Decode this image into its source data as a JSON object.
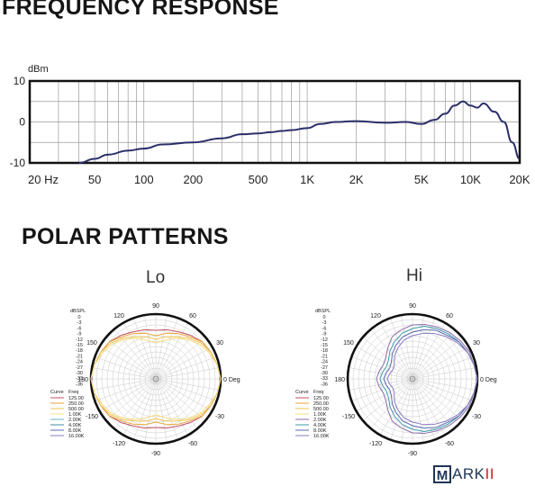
{
  "headings": {
    "frequency_response": "FREQUENCY RESPONSE",
    "polar_patterns": "POLAR PATTERNS"
  },
  "logo": {
    "first": "M",
    "rest": "ARK",
    "accent": "II"
  },
  "chart_data": [
    {
      "type": "line",
      "title": "FREQUENCY RESPONSE",
      "ylabel": "dBm",
      "xscale": "log",
      "xlim": [
        20,
        20000
      ],
      "ylim": [
        -10,
        10
      ],
      "yticks": [
        10,
        0,
        -10
      ],
      "xticks": [
        20,
        50,
        100,
        200,
        500,
        1000,
        2000,
        5000,
        10000,
        20000
      ],
      "xtick_labels": [
        "20 Hz",
        "50",
        "100",
        "200",
        "500",
        "1K",
        "2K",
        "5K",
        "10K",
        "20K"
      ],
      "grid": true,
      "line_color": "#2b2f6a",
      "series": [
        {
          "x": [
            40,
            50,
            60,
            80,
            100,
            130,
            200,
            300,
            400,
            500,
            600,
            700,
            800,
            1000,
            1200,
            1500,
            2000,
            3000,
            4000,
            5000,
            6000,
            7000,
            8000,
            9000,
            10000,
            11000,
            12000,
            14000,
            16000,
            18000,
            20000
          ],
          "y": [
            -10,
            -9,
            -8,
            -7,
            -6.5,
            -5.5,
            -5,
            -4,
            -3,
            -2.8,
            -2.5,
            -2.2,
            -2,
            -1.5,
            -0.5,
            0,
            0.2,
            -0.2,
            0,
            -0.5,
            0.5,
            2,
            4,
            5,
            4,
            3.5,
            4.5,
            2.5,
            0,
            -5,
            -9
          ]
        }
      ]
    },
    {
      "type": "polar",
      "title": "Lo",
      "rlabel": "dBSPL",
      "rticks": [
        "0",
        "-3",
        "-6",
        "-9",
        "-12",
        "-15",
        "-18",
        "-21",
        "-24",
        "-27",
        "-30",
        "-33",
        "-36"
      ],
      "angle_labels": [
        "90",
        "60",
        "30",
        "0 Deg",
        "-30",
        "-60",
        "-90",
        "-120",
        "-150",
        "180",
        "150",
        "120"
      ],
      "legend_header": [
        "Curve",
        "Freq"
      ],
      "series": [
        {
          "name": "125.00",
          "color": "#c05060",
          "r": [
            0,
            -1,
            -2,
            -3,
            -5,
            -7,
            -8,
            -9,
            -8,
            -7,
            -5,
            -3,
            -2,
            -1,
            0,
            -1,
            -2,
            -3,
            -5,
            -7,
            -8,
            -9,
            -8,
            -7,
            -5,
            -3,
            -2,
            -1
          ]
        },
        {
          "name": "250.00",
          "color": "#e8a63a",
          "r": [
            0,
            -1,
            -2,
            -3,
            -6,
            -8,
            -10,
            -12,
            -10,
            -8,
            -6,
            -3,
            -2,
            -1,
            0,
            -1,
            -2,
            -3,
            -6,
            -8,
            -10,
            -12,
            -10,
            -8,
            -6,
            -3,
            -2,
            -1
          ]
        },
        {
          "name": "500.00",
          "color": "#f0c050",
          "r": [
            0,
            -1,
            -2,
            -4,
            -7,
            -10,
            -12,
            -14,
            -12,
            -10,
            -7,
            -4,
            -2,
            -1,
            0,
            -1,
            -2,
            -4,
            -7,
            -10,
            -12,
            -14,
            -12,
            -10,
            -7,
            -4,
            -2,
            -1
          ]
        },
        {
          "name": "1.00K",
          "color": "#f4dc80",
          "r": [
            0,
            -1,
            -3,
            -5,
            -8,
            -11,
            -14,
            -16,
            -14,
            -11,
            -8,
            -5,
            -3,
            -1,
            0,
            -1,
            -3,
            -5,
            -8,
            -11,
            -14,
            -16,
            -14,
            -11,
            -8,
            -5,
            -3,
            -1
          ]
        },
        {
          "name": "2.00K",
          "color": "#6db0c0",
          "r": []
        },
        {
          "name": "4.00K",
          "color": "#3b8aa0",
          "r": []
        },
        {
          "name": "8.00K",
          "color": "#5a6ab0",
          "r": []
        },
        {
          "name": "16.00K",
          "color": "#8a7ac0",
          "r": []
        }
      ]
    },
    {
      "type": "polar",
      "title": "Hi",
      "rlabel": "dBSPL",
      "rticks": [
        "0",
        "-3",
        "-6",
        "-9",
        "-12",
        "-15",
        "-18",
        "-21",
        "-24",
        "-27",
        "-30",
        "-33",
        "-36"
      ],
      "angle_labels": [
        "90",
        "60",
        "30",
        "0 Deg",
        "-30",
        "-60",
        "-90",
        "-120",
        "-150",
        "180",
        "150",
        "120"
      ],
      "legend_header": [
        "Curve",
        "Freq"
      ],
      "series": [
        {
          "name": "125.00",
          "color": "#c05060",
          "r": []
        },
        {
          "name": "250.00",
          "color": "#e8a63a",
          "r": []
        },
        {
          "name": "500.00",
          "color": "#f0c050",
          "r": []
        },
        {
          "name": "1.00K",
          "color": "#f4dc80",
          "r": []
        },
        {
          "name": "2.00K",
          "color": "#8a6aa8",
          "r": [
            0,
            -1,
            -1,
            -2,
            -3,
            -4,
            -5,
            -6,
            -8,
            -10,
            -14,
            -17,
            -18,
            -17,
            -16,
            -17,
            -18,
            -17,
            -14,
            -10,
            -8,
            -6,
            -5,
            -4,
            -3,
            -2,
            -1,
            -1
          ]
        },
        {
          "name": "4.00K",
          "color": "#3b9aa8",
          "r": [
            0,
            -1,
            -2,
            -3,
            -4,
            -5,
            -6,
            -8,
            -10,
            -13,
            -16,
            -19,
            -20,
            -19,
            -18,
            -19,
            -20,
            -19,
            -16,
            -13,
            -10,
            -8,
            -6,
            -5,
            -4,
            -3,
            -2,
            -1
          ]
        },
        {
          "name": "8.00K",
          "color": "#5a6ab0",
          "r": [
            0,
            -1,
            -2,
            -3,
            -5,
            -6,
            -8,
            -10,
            -12,
            -15,
            -18,
            -21,
            -22,
            -21,
            -20,
            -21,
            -22,
            -21,
            -18,
            -15,
            -12,
            -10,
            -8,
            -6,
            -5,
            -3,
            -2,
            -1
          ]
        },
        {
          "name": "16.00K",
          "color": "#8a7ac0",
          "r": [
            0,
            -1,
            -2,
            -4,
            -6,
            -8,
            -10,
            -12,
            -14,
            -17,
            -20,
            -23,
            -24,
            -23,
            -22,
            -23,
            -24,
            -23,
            -20,
            -17,
            -14,
            -12,
            -10,
            -8,
            -6,
            -4,
            -2,
            -1
          ]
        }
      ]
    }
  ]
}
